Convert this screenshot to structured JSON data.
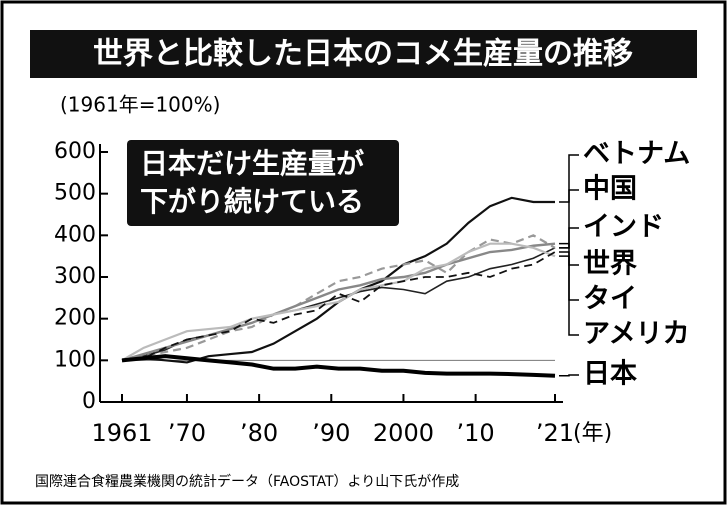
{
  "chart_data": {
    "type": "line",
    "title": "世界と比較した日本のコメ生産量の推移",
    "subtitle": "(1961年=100%)",
    "annotation": [
      "日本だけ生産量が",
      "下がり続けている"
    ],
    "x_unit": "(年)",
    "source": "国際連合食糧農業機関の統計データ（FAOSTAT）より山下氏が作成",
    "x": [
      1961,
      1964,
      1967,
      1970,
      1973,
      1976,
      1979,
      1982,
      1985,
      1988,
      1991,
      1994,
      1997,
      2000,
      2003,
      2006,
      2009,
      2012,
      2015,
      2018,
      2021
    ],
    "series": [
      {
        "name": "ベトナム",
        "color": "#111111",
        "dash": false,
        "width": 2.2,
        "values": [
          100,
          105,
          100,
          95,
          110,
          115,
          120,
          140,
          170,
          200,
          240,
          270,
          290,
          330,
          350,
          380,
          430,
          470,
          490,
          480,
          480
        ]
      },
      {
        "name": "中国",
        "color": "#222222",
        "dash": false,
        "width": 1.6,
        "values": [
          100,
          110,
          125,
          150,
          160,
          175,
          190,
          210,
          220,
          235,
          250,
          265,
          275,
          270,
          260,
          290,
          300,
          320,
          330,
          345,
          370
        ]
      },
      {
        "name": "インド",
        "color": "#999999",
        "dash": true,
        "width": 2.2,
        "values": [
          100,
          110,
          120,
          130,
          150,
          170,
          180,
          210,
          230,
          260,
          290,
          300,
          320,
          330,
          340,
          310,
          360,
          390,
          380,
          400,
          370
        ]
      },
      {
        "name": "世界",
        "color": "#888888",
        "dash": false,
        "width": 2.4,
        "values": [
          100,
          115,
          130,
          145,
          160,
          175,
          190,
          210,
          230,
          250,
          270,
          280,
          295,
          300,
          310,
          330,
          345,
          360,
          365,
          375,
          380
        ]
      },
      {
        "name": "タイ",
        "color": "#bbbbbb",
        "dash": false,
        "width": 2.2,
        "values": [
          100,
          130,
          150,
          170,
          175,
          180,
          200,
          210,
          220,
          230,
          240,
          270,
          280,
          290,
          320,
          330,
          360,
          380,
          380,
          370,
          350
        ]
      },
      {
        "name": "アメリカ",
        "color": "#111111",
        "dash": true,
        "width": 1.8,
        "values": [
          100,
          105,
          130,
          150,
          160,
          170,
          200,
          190,
          210,
          220,
          260,
          240,
          280,
          290,
          300,
          300,
          310,
          300,
          320,
          330,
          360
        ]
      },
      {
        "name": "日本",
        "color": "#000000",
        "dash": false,
        "width": 4,
        "values": [
          100,
          105,
          110,
          105,
          100,
          95,
          90,
          80,
          80,
          85,
          80,
          80,
          75,
          75,
          70,
          68,
          68,
          68,
          67,
          65,
          63
        ]
      }
    ],
    "reference_line": 100,
    "xlim": [
      1961,
      2021
    ],
    "xticks": [
      1961,
      {
        "value": 1970,
        "label": "’70"
      },
      {
        "value": 1980,
        "label": "’80"
      },
      {
        "value": 1990,
        "label": "’90"
      },
      2000,
      {
        "value": 2010,
        "label": "’10"
      },
      {
        "value": 2021,
        "label": "’21"
      }
    ],
    "ylim": [
      0,
      600
    ],
    "yticks": [
      0,
      100,
      200,
      300,
      400,
      500,
      600
    ]
  }
}
